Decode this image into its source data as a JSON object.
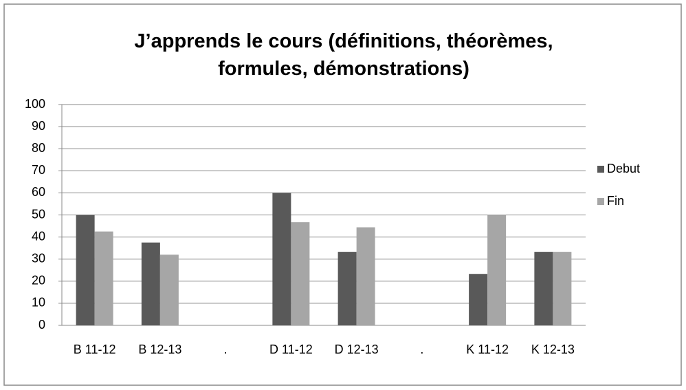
{
  "chart_data": {
    "type": "bar",
    "title": "J’apprends le cours (définitions, théorèmes, formules, démonstrations)",
    "categories": [
      "B 11-12",
      "B 12-13",
      ".",
      "D 11-12",
      "D 12-13",
      ".",
      "K 11-12",
      "K 12-13"
    ],
    "series": [
      {
        "name": "Debut",
        "color": "#595959",
        "values": [
          50,
          37.5,
          null,
          60,
          33.3,
          null,
          23.3,
          33.3
        ]
      },
      {
        "name": "Fin",
        "color": "#a6a6a6",
        "values": [
          42.5,
          32,
          null,
          46.7,
          44.4,
          null,
          50,
          33.3
        ]
      }
    ],
    "ylim": [
      0,
      100
    ],
    "yticks": [
      0,
      10,
      20,
      30,
      40,
      50,
      60,
      70,
      80,
      90,
      100
    ],
    "grid": true,
    "legend": "right"
  }
}
